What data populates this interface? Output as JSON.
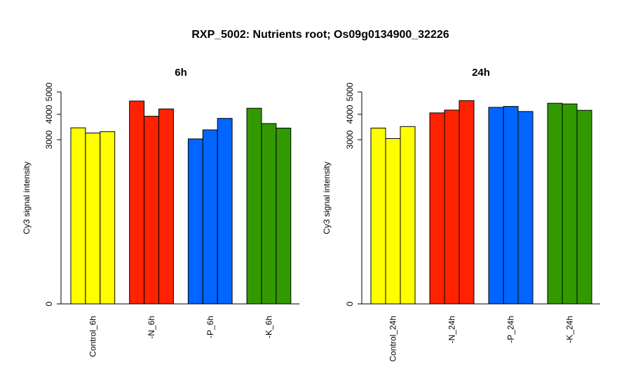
{
  "title": "RXP_5002: Nutrients root; Os09g0134900_32226",
  "chart_data": [
    {
      "type": "bar",
      "title": "6h",
      "ylabel": "Cy3 signal intensity",
      "yticks": [
        0,
        3000,
        4000,
        5000
      ],
      "ylim": [
        0,
        5000
      ],
      "y_scale": "square-root",
      "groups": [
        {
          "label": "Control_6h",
          "color": "#ffff00",
          "values": [
            3450,
            3250,
            3300
          ]
        },
        {
          "label": "-N_6h",
          "color": "#ff2200",
          "values": [
            4580,
            3920,
            4230
          ]
        },
        {
          "label": "-P_6h",
          "color": "#0066ff",
          "values": [
            3030,
            3370,
            3830
          ]
        },
        {
          "label": "-K_6h",
          "color": "#339900",
          "values": [
            4260,
            3620,
            3440
          ]
        }
      ]
    },
    {
      "type": "bar",
      "title": "24h",
      "ylabel": "Cy3 signal intensity",
      "yticks": [
        0,
        3000,
        4000,
        5000
      ],
      "ylim": [
        0,
        5000
      ],
      "y_scale": "square-root",
      "groups": [
        {
          "label": "Control_24h",
          "color": "#ffff00",
          "values": [
            3440,
            3040,
            3500
          ]
        },
        {
          "label": "-N_24h",
          "color": "#ff2200",
          "values": [
            4060,
            4180,
            4600
          ]
        },
        {
          "label": "-P_24h",
          "color": "#0066ff",
          "values": [
            4300,
            4340,
            4120
          ]
        },
        {
          "label": "-K_24h",
          "color": "#339900",
          "values": [
            4480,
            4450,
            4170
          ]
        }
      ]
    }
  ]
}
